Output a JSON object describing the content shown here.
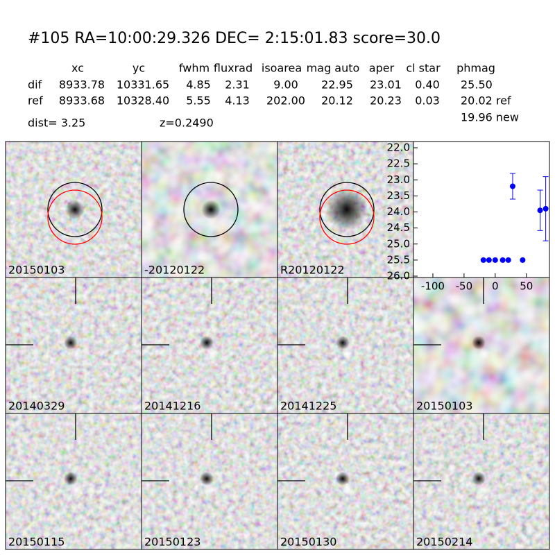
{
  "header": {
    "title": "#105   RA=10:00:29.326 DEC= 2:15:01.83       score=30.0",
    "columns": [
      "xc",
      "yc",
      "fwhm",
      "fluxrad",
      "isoarea",
      "mag auto",
      "aper",
      "cl star",
      "phmag"
    ],
    "rows": [
      {
        "label": "dif",
        "cells": [
          "8933.78",
          "10331.65",
          "4.85",
          "2.31",
          "9.00",
          "22.95",
          "23.01",
          "0.40",
          "25.50"
        ]
      },
      {
        "label": "ref",
        "cells": [
          "8933.68",
          "10328.40",
          "5.55",
          "4.13",
          "202.00",
          "20.12",
          "20.23",
          "0.03",
          "20.02 ref"
        ]
      }
    ],
    "extra": "19.96 new",
    "dist": "dist=  3.25",
    "redshift": "z=0.2490"
  },
  "stamps": [
    {
      "label": "20150103"
    },
    {
      "label": "-20120122"
    },
    {
      "label": "R20120122"
    },
    {
      "label": "20140329"
    },
    {
      "label": "20141216"
    },
    {
      "label": "20141225"
    },
    {
      "label": "20150103",
      "color": "#ff0000"
    },
    {
      "label": "20150115"
    },
    {
      "label": "20150123"
    },
    {
      "label": "20150130"
    },
    {
      "label": "20150214"
    }
  ],
  "chart_data": {
    "type": "errorbar",
    "x": [
      -19,
      -10,
      0,
      12,
      21,
      28,
      44,
      72,
      81
    ],
    "values": [
      25.5,
      25.5,
      25.5,
      25.5,
      25.5,
      23.2,
      25.5,
      23.95,
      23.9
    ],
    "errors": [
      null,
      null,
      null,
      null,
      null,
      0.4,
      null,
      0.63,
      1.0
    ],
    "color": "#0000ff",
    "xlim": [
      -130,
      87
    ],
    "ylim": [
      26,
      22
    ],
    "inverted_y": true,
    "xticks": [
      -100,
      -50,
      0,
      50
    ],
    "yticks": [
      {
        "value": 22,
        "label": "22.0"
      },
      {
        "value": 22.5,
        "label": "22.5"
      },
      {
        "value": 23,
        "label": "23.0"
      },
      {
        "value": 23.5,
        "label": "23.5"
      },
      {
        "value": 24,
        "label": "24.0"
      },
      {
        "value": 24.5,
        "label": "24.5"
      },
      {
        "value": 25,
        "label": "25.0"
      },
      {
        "value": 25.5,
        "label": "25.5"
      },
      {
        "value": 26,
        "label": "26.0"
      }
    ]
  }
}
